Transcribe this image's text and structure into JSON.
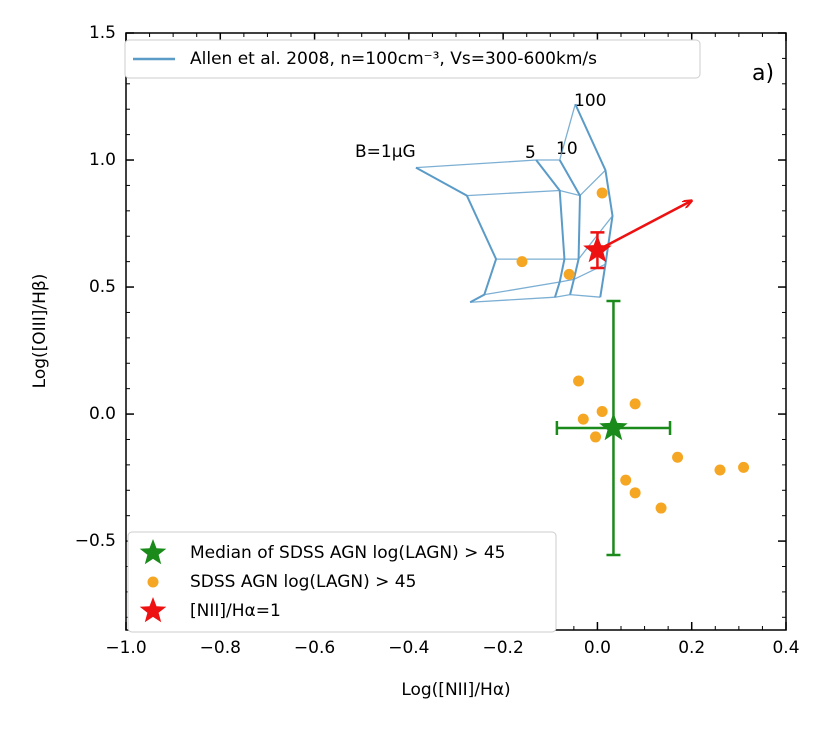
{
  "chart_data": {
    "type": "scatter",
    "panel_label": "a)",
    "x_label": "Log([NII]/Hα)",
    "y_label": "Log([OIII]/Hβ)",
    "xlim": [
      -1.0,
      0.4
    ],
    "ylim": [
      -0.85,
      1.5
    ],
    "xticks": [
      {
        "value": -1.0,
        "label": "−1.0"
      },
      {
        "value": -0.8,
        "label": "−0.8"
      },
      {
        "value": -0.6,
        "label": "−0.6"
      },
      {
        "value": -0.4,
        "label": "−0.4"
      },
      {
        "value": -0.2,
        "label": "−0.2"
      },
      {
        "value": 0,
        "label": "0.0"
      },
      0.2,
      0.4
    ],
    "yticks": [
      {
        "value": -0.5,
        "label": "−0.5"
      },
      {
        "value": 0,
        "label": "0.0"
      },
      0.5,
      {
        "value": 1.0,
        "label": "1.0"
      },
      1.5
    ],
    "model": {
      "name": "Allen et al. 2008, n=100cm⁻³, Vs=300-600km/s",
      "color": "#5b9bc8",
      "labels": [
        "B=1μG",
        "5",
        "10",
        "100"
      ],
      "lines": [
        {
          "x": [
            -0.385,
            -0.277,
            -0.215,
            -0.24,
            -0.27
          ],
          "values": [
            0.97,
            0.86,
            0.61,
            0.47,
            0.44
          ]
        },
        {
          "x": [
            -0.13,
            -0.08,
            -0.07,
            -0.08,
            -0.09
          ],
          "values": [
            1.0,
            0.88,
            0.61,
            0.52,
            0.46
          ]
        },
        {
          "x": [
            -0.08,
            -0.037,
            -0.04,
            -0.05,
            -0.058
          ],
          "values": [
            1.0,
            0.86,
            0.61,
            0.53,
            0.47
          ]
        },
        {
          "x": [
            -0.047,
            0.017,
            0.032,
            0.017,
            0.006
          ],
          "values": [
            1.22,
            0.96,
            0.78,
            0.59,
            0.46
          ]
        }
      ]
    },
    "series": [
      {
        "name": "Median of SDSS AGN log(LAGN) > 45",
        "color": "#1a8a1a",
        "marker": "star",
        "x": [
          0.034
        ],
        "values": [
          -0.055
        ],
        "xerr": [
          0.12
        ],
        "yerr": [
          0.5
        ]
      },
      {
        "name": "SDSS AGN log(LAGN) > 45",
        "color": "#f5a623",
        "marker": "circle",
        "x": [
          0.01,
          -0.16,
          -0.06,
          -0.04,
          -0.03,
          0.01,
          0.08,
          -0.004,
          0.06,
          0.08,
          0.135,
          0.17,
          0.26,
          0.31
        ],
        "values": [
          0.87,
          0.6,
          0.55,
          0.13,
          -0.02,
          0.01,
          0.04,
          -0.09,
          -0.26,
          -0.31,
          -0.37,
          -0.17,
          -0.22,
          -0.21
        ]
      },
      {
        "name": "[NII]/Hα=1",
        "color": "#ee1111",
        "marker": "star",
        "x": [
          0
        ],
        "values": [
          0.645
        ],
        "yerr": [
          0.07
        ]
      }
    ],
    "arrow": {
      "color": "#ee1111",
      "x": [
        0,
        0.2
      ],
      "values": [
        0.645,
        0.84
      ]
    }
  }
}
